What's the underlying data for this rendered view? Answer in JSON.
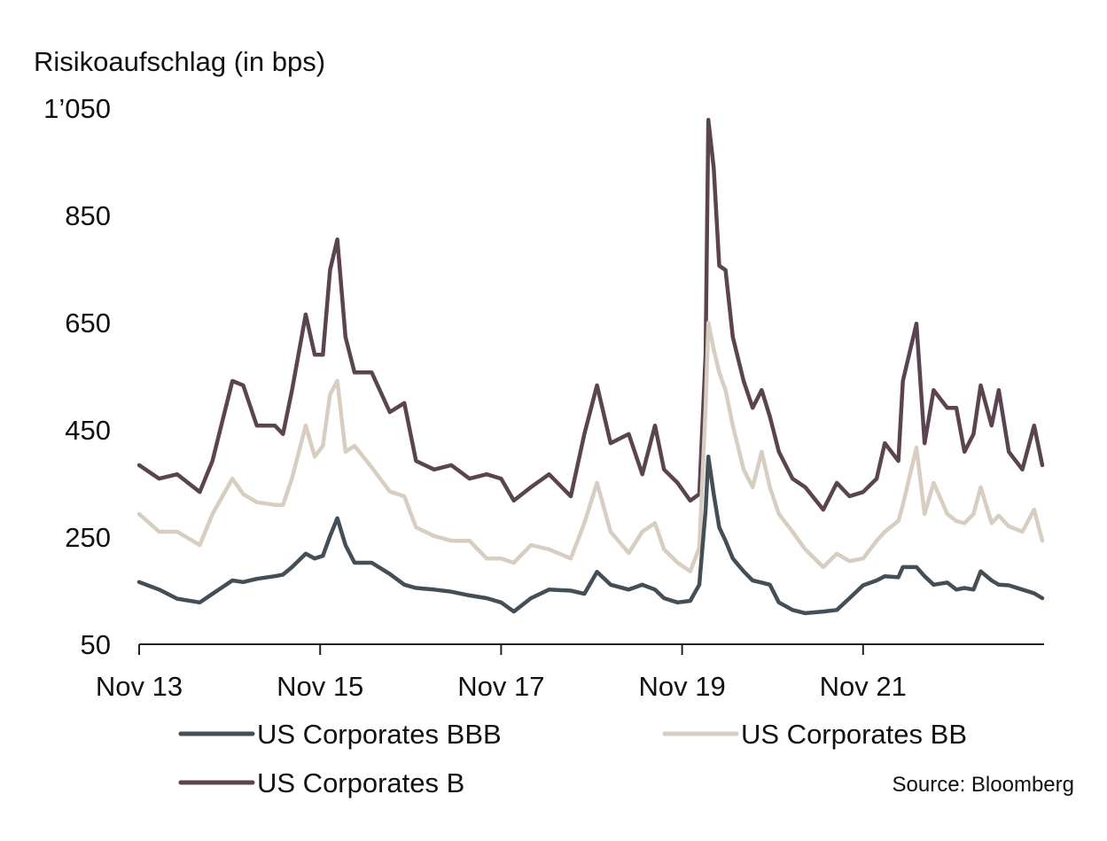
{
  "chart_data": {
    "type": "line",
    "title": "Risikoaufschlag (in bps)",
    "xlabel": "",
    "ylabel": "Risikoaufschlag (in bps)",
    "ylim": [
      50,
      1050
    ],
    "xlim": [
      2013.83,
      2023.83
    ],
    "y_ticks": [
      50,
      250,
      450,
      650,
      850,
      1050
    ],
    "y_tick_labels": [
      "50",
      "250",
      "450",
      "650",
      "850",
      "1’050"
    ],
    "x_ticks": [
      2013.83,
      2015.83,
      2017.83,
      2019.83,
      2021.83
    ],
    "x_tick_labels": [
      "Nov 13",
      "Nov 15",
      "Nov 17",
      "Nov 19",
      "Nov 21"
    ],
    "grid": false,
    "legend_position": "bottom",
    "source": "Source: Bloomberg",
    "x": [
      2013.83,
      2014.05,
      2014.25,
      2014.5,
      2014.64,
      2014.86,
      2014.98,
      2015.13,
      2015.33,
      2015.42,
      2015.52,
      2015.67,
      2015.77,
      2015.86,
      2015.94,
      2016.02,
      2016.11,
      2016.21,
      2016.4,
      2016.6,
      2016.76,
      2016.89,
      2017.09,
      2017.28,
      2017.48,
      2017.67,
      2017.83,
      2017.97,
      2018.16,
      2018.36,
      2018.6,
      2018.75,
      2018.89,
      2019.04,
      2019.24,
      2019.39,
      2019.53,
      2019.63,
      2019.78,
      2019.92,
      2020.02,
      2020.09,
      2020.12,
      2020.18,
      2020.24,
      2020.31,
      2020.39,
      2020.51,
      2020.61,
      2020.71,
      2020.8,
      2020.9,
      2021.05,
      2021.19,
      2021.39,
      2021.54,
      2021.68,
      2021.83,
      2021.98,
      2022.07,
      2022.22,
      2022.27,
      2022.42,
      2022.51,
      2022.61,
      2022.76,
      2022.86,
      2022.95,
      2023.05,
      2023.13,
      2023.25,
      2023.33,
      2023.44,
      2023.59,
      2023.72,
      2023.81
    ],
    "series": [
      {
        "name": "US Corporates B",
        "color": "#5a4450",
        "values": [
          384,
          359,
          367,
          334,
          392,
          541,
          533,
          458,
          458,
          442,
          524,
          665,
          590,
          590,
          748,
          805,
          623,
          557,
          557,
          483,
          500,
          392,
          376,
          384,
          359,
          367,
          359,
          318,
          343,
          367,
          326,
          442,
          533,
          425,
          442,
          367,
          458,
          376,
          351,
          318,
          330,
          590,
          1028,
          938,
          756,
          748,
          623,
          541,
          491,
          524,
          475,
          409,
          359,
          343,
          301,
          351,
          326,
          334,
          359,
          425,
          392,
          541,
          648,
          425,
          524,
          491,
          491,
          409,
          442,
          533,
          458,
          524,
          409,
          376,
          458,
          384
        ]
      },
      {
        "name": "US Corporates BB",
        "color": "#d7cdc0",
        "values": [
          293,
          260,
          260,
          235,
          293,
          359,
          330,
          315,
          310,
          310,
          360,
          458,
          400,
          420,
          516,
          541,
          409,
          420,
          380,
          335,
          326,
          268,
          252,
          243,
          243,
          210,
          210,
          202,
          235,
          227,
          210,
          276,
          351,
          260,
          220,
          260,
          276,
          227,
          202,
          186,
          230,
          491,
          650,
          600,
          557,
          524,
          458,
          376,
          343,
          409,
          343,
          293,
          260,
          227,
          194,
          219,
          205,
          210,
          243,
          260,
          280,
          310,
          417,
          293,
          351,
          293,
          280,
          276,
          293,
          343,
          276,
          290,
          270,
          260,
          301,
          243
        ]
      },
      {
        "name": "US Corporates BBB",
        "color": "#434e56",
        "values": [
          166,
          152,
          135,
          128,
          144,
          169,
          166,
          172,
          177,
          180,
          194,
          219,
          210,
          215,
          252,
          285,
          235,
          202,
          202,
          181,
          161,
          155,
          152,
          148,
          141,
          136,
          128,
          111,
          136,
          152,
          150,
          144,
          185,
          161,
          152,
          161,
          152,
          136,
          128,
          131,
          161,
          300,
          400,
          330,
          268,
          243,
          210,
          186,
          169,
          165,
          161,
          128,
          114,
          108,
          111,
          114,
          136,
          160,
          169,
          177,
          175,
          194,
          194,
          177,
          161,
          165,
          152,
          155,
          152,
          186,
          169,
          161,
          160,
          152,
          145,
          136
        ]
      }
    ],
    "legend": [
      {
        "label": "US Corporates BBB",
        "color": "#434e56"
      },
      {
        "label": "US Corporates BB",
        "color": "#d7cdc0"
      },
      {
        "label": "US Corporates B",
        "color": "#5a4450"
      }
    ]
  }
}
